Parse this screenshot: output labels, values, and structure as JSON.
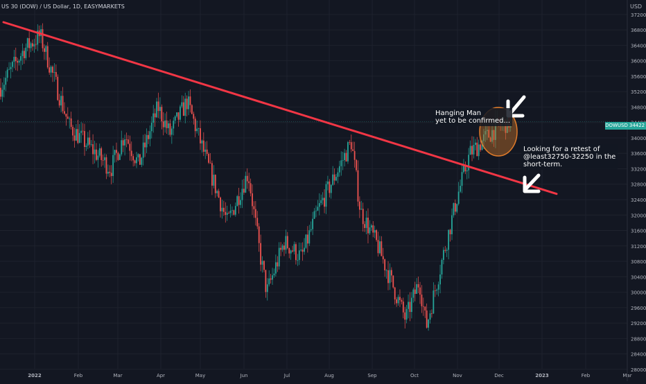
{
  "header": {
    "symbol_title": "US 30 (DOW) / US Dollar, 1D, EASYMARKETS",
    "currency": "USD"
  },
  "price_tag": {
    "symbol": "DOWUSD",
    "value": "34422"
  },
  "annotations": {
    "hanging_man": "Hanging Man\nyet to be confirmed...",
    "retest": "Looking for a retest of\n@least32750-32250 in the\nshort-term."
  },
  "colors": {
    "background": "#131722",
    "grid": "#1e222d",
    "up": "#26a69a",
    "down": "#ef5350",
    "trendline": "#f23645",
    "highlight": "#c0712a",
    "arrow": "#ffffff"
  },
  "chart_data": {
    "type": "candlestick",
    "title": "US 30 (DOW) / US Dollar, 1D, EASYMARKETS",
    "ylim": [
      27800,
      37700
    ],
    "y_ticks": [
      28000,
      28400,
      28800,
      29200,
      29600,
      30000,
      30400,
      30800,
      31200,
      31600,
      32000,
      32400,
      32800,
      33200,
      33600,
      34000,
      34400,
      34800,
      35200,
      35600,
      36000,
      36400,
      36800,
      37200
    ],
    "x_tick_labels": [
      "2022",
      "Feb",
      "Mar",
      "Apr",
      "May",
      "Jun",
      "Jul",
      "Aug",
      "Sep",
      "Oct",
      "Nov",
      "Dec",
      "2023",
      "Feb",
      "Mar"
    ],
    "last_price": 34422,
    "path_keypoints": [
      {
        "label": "Dec",
        "close": 35300
      },
      {
        "label": "2022",
        "close": 36300
      },
      {
        "label": "Jan",
        "close": 36650
      },
      {
        "label": "Feb",
        "close": 34300
      },
      {
        "label": "Feb",
        "close": 33200
      },
      {
        "label": "Mar",
        "close": 34100
      },
      {
        "label": "Mar",
        "close": 33300
      },
      {
        "label": "Apr",
        "close": 34800
      },
      {
        "label": "Apr",
        "close": 34100
      },
      {
        "label": "Apr",
        "close": 34950
      },
      {
        "label": "May",
        "close": 33300
      },
      {
        "label": "May",
        "close": 31800
      },
      {
        "label": "Jun",
        "close": 33100
      },
      {
        "label": "Jun",
        "close": 31000
      },
      {
        "label": "Jun",
        "close": 30000
      },
      {
        "label": "Jul",
        "close": 31300
      },
      {
        "label": "Jul",
        "close": 30900
      },
      {
        "label": "Jul",
        "close": 32100
      },
      {
        "label": "Aug",
        "close": 32900
      },
      {
        "label": "Aug",
        "close": 33900
      },
      {
        "label": "Sep",
        "close": 32100
      },
      {
        "label": "Sep",
        "close": 31200
      },
      {
        "label": "Oct",
        "close": 29300
      },
      {
        "label": "Oct",
        "close": 30300
      },
      {
        "label": "Oct",
        "close": 29100
      },
      {
        "label": "Nov",
        "close": 31000
      },
      {
        "label": "Nov",
        "close": 32500
      },
      {
        "label": "Nov",
        "close": 33600
      },
      {
        "label": "Dec",
        "close": 34300
      },
      {
        "label": "Dec",
        "close": 34422
      }
    ],
    "trendline": [
      {
        "label": "Dec",
        "value": 37000
      },
      {
        "label": "2023",
        "value": 32550
      }
    ],
    "annotations": [
      "Hanging Man\nyet to be confirmed...",
      "Looking for a retest of\n@least32750-32250 in the\nshort-term."
    ]
  }
}
